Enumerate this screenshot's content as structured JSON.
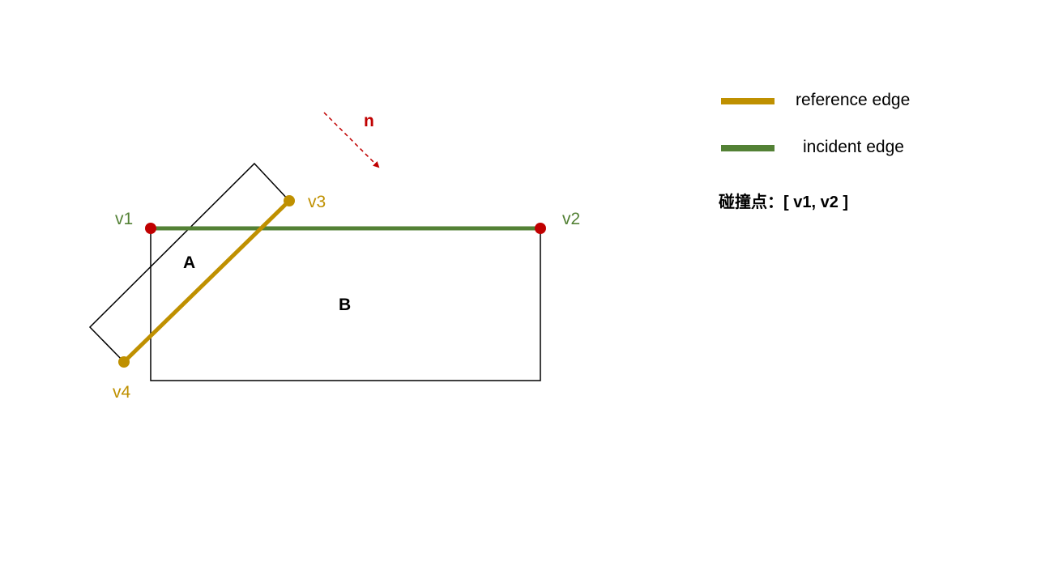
{
  "diagram": {
    "shape_a_label": "A",
    "shape_b_label": "B",
    "normal_label": "n",
    "vertices": {
      "v1": "v1",
      "v2": "v2",
      "v3": "v3",
      "v4": "v4"
    }
  },
  "legend": {
    "reference_edge": "reference edge",
    "incident_edge": "incident edge",
    "contact_points_label": "碰撞点：",
    "contact_points_value": "[ v1, v2 ]"
  },
  "colors": {
    "reference": "#BF9000",
    "incident": "#538135",
    "point": "#C00000",
    "normal": "#C00000",
    "outline": "#000000"
  }
}
